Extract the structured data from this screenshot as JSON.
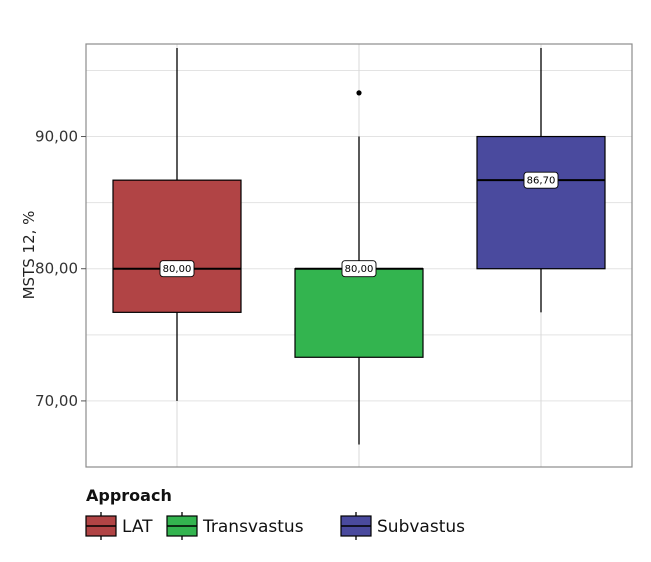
{
  "chart_data": {
    "type": "box",
    "title": "",
    "xlabel": "",
    "ylabel": "MSTS 12, %",
    "ylim": [
      65,
      97
    ],
    "y_ticks": [
      70,
      80,
      90
    ],
    "y_tick_labels": [
      "70,00",
      "80,00",
      "90,00"
    ],
    "grid": true,
    "legend": {
      "title": "Approach",
      "placement": "bottom-left"
    },
    "series": [
      {
        "name": "LAT",
        "color": "#b14445",
        "whisker_low": 70.0,
        "q1": 76.7,
        "median": 80.0,
        "q3": 86.7,
        "whisker_high": 96.7,
        "median_label": "80,00",
        "outliers": []
      },
      {
        "name": "Transvastus",
        "color": "#33b44f",
        "whisker_low": 66.7,
        "q1": 73.3,
        "median": 80.0,
        "q3": 80.0,
        "whisker_high": 90.0,
        "median_label": "80,00",
        "outliers": [
          93.3
        ]
      },
      {
        "name": "Subvastus",
        "color": "#4a4a9e",
        "whisker_low": 76.7,
        "q1": 80.0,
        "median": 86.7,
        "q3": 90.0,
        "whisker_high": 96.7,
        "median_label": "86,70",
        "outliers": []
      }
    ]
  }
}
